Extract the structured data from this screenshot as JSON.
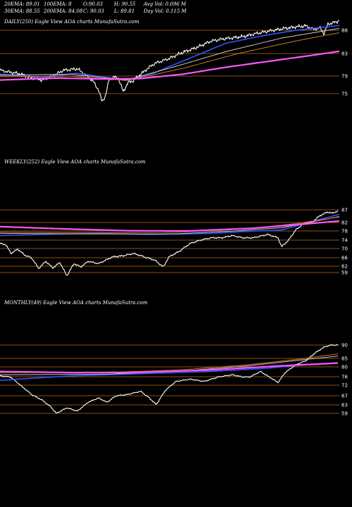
{
  "header": {
    "row1": [
      "20EMA: 89.01",
      "100EMA: 8",
      "O:90.03",
      "H: 90.55",
      "Avg Vol: 0.096  M"
    ],
    "row2": [
      "30EMA: 88.55",
      "200EMA: 84.08",
      "C: 90.03",
      "L: 89.81",
      "Day Vol: 0.115 M"
    ]
  },
  "panels": {
    "daily": {
      "label": "DAILY(250) Eagle  View  AOA charts MunafaSutra.com",
      "yticks": [
        "88",
        "83",
        "79",
        "75"
      ]
    },
    "weekly": {
      "label": "WEEKLY(252) Eagle  View  AOA charts MunafaSutra.com",
      "yticks": [
        "87",
        "82",
        "78",
        "74",
        "70",
        "66",
        "62",
        "59"
      ]
    },
    "monthly": {
      "label": "MONTHLY(49) Eagle  View  AOA charts MunafaSutra.com",
      "yticks": [
        "90",
        "85",
        "80",
        "76",
        "72",
        "67",
        "63",
        "59"
      ]
    }
  },
  "colors": {
    "price": "#ffffff",
    "ema_short": "#3355ff",
    "ema_mid": "#c9c9c9",
    "ema_long": "#ff55ff",
    "ema_slow": "#cc7722",
    "grid": "#b86a1a"
  },
  "chart_data": [
    {
      "type": "line",
      "name": "daily",
      "n": 250,
      "ylim": [
        73,
        91
      ],
      "series": [
        {
          "role": "price",
          "color": "#ffffff",
          "anchors": [
            [
              0,
              79.8
            ],
            [
              15,
              79.4
            ],
            [
              30,
              79.0
            ],
            [
              45,
              78.2
            ],
            [
              60,
              77.8
            ],
            [
              75,
              78.6
            ],
            [
              90,
              79.8
            ],
            [
              110,
              80.1
            ],
            [
              125,
              78.5
            ],
            [
              133,
              77.4
            ],
            [
              140,
              75.7
            ],
            [
              145,
              73.4
            ],
            [
              150,
              74.6
            ],
            [
              155,
              77.9
            ],
            [
              162,
              78.4
            ],
            [
              168,
              78.2
            ],
            [
              175,
              75.4
            ],
            [
              182,
              77.3
            ],
            [
              190,
              77.7
            ],
            [
              200,
              79.0
            ],
            [
              210,
              80.2
            ],
            [
              220,
              81.2
            ],
            [
              240,
              82.2
            ],
            [
              260,
              83.5
            ],
            [
              280,
              84.5
            ],
            [
              300,
              85.8
            ],
            [
              320,
              86.3
            ],
            [
              345,
              86.7
            ],
            [
              360,
              87.2
            ],
            [
              380,
              87.8
            ],
            [
              400,
              88.3
            ],
            [
              420,
              88.7
            ],
            [
              435,
              88.9
            ],
            [
              445,
              88.2
            ],
            [
              455,
              88.5
            ],
            [
              460,
              87.3
            ],
            [
              466,
              89.3
            ],
            [
              475,
              89.6
            ],
            [
              482,
              90.0
            ]
          ]
        },
        {
          "role": "ema_short",
          "color": "#3355ff",
          "anchors": [
            [
              0,
              79.0
            ],
            [
              60,
              78.3
            ],
            [
              110,
              79.2
            ],
            [
              150,
              78.3
            ],
            [
              185,
              77.8
            ],
            [
              220,
              79.3
            ],
            [
              270,
              82.3
            ],
            [
              320,
              85.3
            ],
            [
              370,
              86.8
            ],
            [
              420,
              88.0
            ],
            [
              482,
              89.0
            ]
          ]
        },
        {
          "role": "ema_mid",
          "color": "#c9c9c9",
          "anchors": [
            [
              0,
              78.8
            ],
            [
              100,
              79.0
            ],
            [
              180,
              77.8
            ],
            [
              250,
              80.6
            ],
            [
              320,
              83.6
            ],
            [
              400,
              86.4
            ],
            [
              482,
              88.4
            ]
          ]
        },
        {
          "role": "ema_slow",
          "color": "#cc7722",
          "anchors": [
            [
              0,
              78.5
            ],
            [
              100,
              78.6
            ],
            [
              180,
              77.7
            ],
            [
              260,
              80.2
            ],
            [
              340,
              83.3
            ],
            [
              420,
              85.8
            ],
            [
              482,
              87.5
            ]
          ]
        },
        {
          "role": "ema_long",
          "color": "#ff55ff",
          "anchors": [
            [
              0,
              77.8
            ],
            [
              80,
              78.2
            ],
            [
              150,
              78.0
            ],
            [
              200,
              78.1
            ],
            [
              260,
              79.0
            ],
            [
              320,
              80.4
            ],
            [
              380,
              81.6
            ],
            [
              440,
              82.8
            ],
            [
              482,
              83.7
            ]
          ]
        }
      ]
    },
    {
      "type": "line",
      "name": "weekly",
      "n": 252,
      "ylim": [
        55,
        89
      ],
      "series": [
        {
          "role": "price",
          "color": "#ffffff",
          "anchors": [
            [
              0,
              72.0
            ],
            [
              8,
              71.5
            ],
            [
              16,
              67.5
            ],
            [
              25,
              69.5
            ],
            [
              35,
              66.8
            ],
            [
              45,
              65.5
            ],
            [
              55,
              60.8
            ],
            [
              65,
              64.0
            ],
            [
              75,
              61.0
            ],
            [
              85,
              63.5
            ],
            [
              95,
              57.5
            ],
            [
              105,
              63.0
            ],
            [
              115,
              61.5
            ],
            [
              125,
              64.0
            ],
            [
              140,
              63.0
            ],
            [
              160,
              66.0
            ],
            [
              175,
              66.5
            ],
            [
              190,
              67.5
            ],
            [
              210,
              65.5
            ],
            [
              220,
              64.5
            ],
            [
              232,
              61.5
            ],
            [
              240,
              66.0
            ],
            [
              255,
              68.5
            ],
            [
              270,
              72.0
            ],
            [
              285,
              73.5
            ],
            [
              300,
              74.5
            ],
            [
              315,
              74.5
            ],
            [
              330,
              75.5
            ],
            [
              345,
              74.5
            ],
            [
              360,
              74.5
            ],
            [
              380,
              76.0
            ],
            [
              395,
              74.5
            ],
            [
              400,
              70.5
            ],
            [
              410,
              73.5
            ],
            [
              420,
              78.0
            ],
            [
              430,
              80.5
            ],
            [
              445,
              82.0
            ],
            [
              455,
              84.5
            ],
            [
              465,
              86.0
            ],
            [
              472,
              85.5
            ],
            [
              480,
              86.5
            ]
          ]
        },
        {
          "role": "ema_short",
          "color": "#3355ff",
          "anchors": [
            [
              0,
              75.5
            ],
            [
              60,
              76.0
            ],
            [
              140,
              76.5
            ],
            [
              210,
              76.0
            ],
            [
              260,
              76.2
            ],
            [
              300,
              76.5
            ],
            [
              360,
              77.5
            ],
            [
              400,
              78.0
            ],
            [
              440,
              81.5
            ],
            [
              482,
              85.0
            ]
          ]
        },
        {
          "role": "ema_mid",
          "color": "#c9c9c9",
          "anchors": [
            [
              0,
              76.5
            ],
            [
              150,
              76.2
            ],
            [
              250,
              76.3
            ],
            [
              330,
              77.5
            ],
            [
              400,
              79.0
            ],
            [
              482,
              84.0
            ]
          ]
        },
        {
          "role": "ema_slow",
          "color": "#cc7722",
          "anchors": [
            [
              0,
              77.0
            ],
            [
              150,
              76.8
            ],
            [
              250,
              77.0
            ],
            [
              350,
              78.5
            ],
            [
              420,
              80.8
            ],
            [
              482,
              83.8
            ]
          ]
        },
        {
          "role": "ema_long",
          "color": "#ff55ff",
          "anchors": [
            [
              0,
              79.5
            ],
            [
              90,
              78.5
            ],
            [
              180,
              77.7
            ],
            [
              270,
              77.6
            ],
            [
              360,
              78.8
            ],
            [
              430,
              80.6
            ],
            [
              482,
              82.0
            ]
          ]
        }
      ]
    },
    {
      "type": "line",
      "name": "monthly",
      "n": 49,
      "ylim": [
        56,
        93
      ],
      "series": [
        {
          "role": "price",
          "color": "#ffffff",
          "anchors": [
            [
              0,
              76.0
            ],
            [
              15,
              75.5
            ],
            [
              30,
              71.5
            ],
            [
              45,
              67.5
            ],
            [
              60,
              65.0
            ],
            [
              72,
              62.0
            ],
            [
              80,
              59.0
            ],
            [
              95,
              61.5
            ],
            [
              110,
              60.0
            ],
            [
              125,
              64.0
            ],
            [
              140,
              66.0
            ],
            [
              152,
              64.0
            ],
            [
              165,
              67.0
            ],
            [
              180,
              67.5
            ],
            [
              200,
              69.0
            ],
            [
              212,
              66.0
            ],
            [
              222,
              63.0
            ],
            [
              235,
              69.5
            ],
            [
              250,
              73.5
            ],
            [
              270,
              74.5
            ],
            [
              290,
              73.5
            ],
            [
              310,
              75.5
            ],
            [
              330,
              76.5
            ],
            [
              345,
              75.5
            ],
            [
              355,
              75.5
            ],
            [
              370,
              78.0
            ],
            [
              385,
              75.0
            ],
            [
              395,
              73.0
            ],
            [
              405,
              77.5
            ],
            [
              420,
              81.0
            ],
            [
              435,
              83.0
            ],
            [
              448,
              86.5
            ],
            [
              460,
              89.0
            ],
            [
              470,
              90.0
            ],
            [
              480,
              90.0
            ]
          ]
        },
        {
          "role": "ema_short",
          "color": "#3355ff",
          "anchors": [
            [
              0,
              74.0
            ],
            [
              100,
              76.0
            ],
            [
              200,
              77.0
            ],
            [
              300,
              78.0
            ],
            [
              380,
              79.5
            ],
            [
              430,
              81.0
            ],
            [
              480,
              82.0
            ]
          ]
        },
        {
          "role": "ema_mid",
          "color": "#c9c9c9",
          "anchors": [
            [
              0,
              76.5
            ],
            [
              150,
              76.8
            ],
            [
              260,
              78.2
            ],
            [
              350,
              80.5
            ],
            [
              430,
              83.3
            ],
            [
              480,
              85.0
            ]
          ]
        },
        {
          "role": "ema_slow",
          "color": "#cc7722",
          "anchors": [
            [
              0,
              77.5
            ],
            [
              150,
              77.5
            ],
            [
              260,
              78.8
            ],
            [
              350,
              81.0
            ],
            [
              430,
              83.8
            ],
            [
              480,
              86.0
            ]
          ]
        },
        {
          "role": "ema_long",
          "color": "#ff55ff",
          "anchors": [
            [
              0,
              78.0
            ],
            [
              100,
              77.5
            ],
            [
              200,
              77.6
            ],
            [
              300,
              78.7
            ],
            [
              400,
              80.6
            ],
            [
              480,
              81.8
            ]
          ]
        }
      ]
    }
  ]
}
